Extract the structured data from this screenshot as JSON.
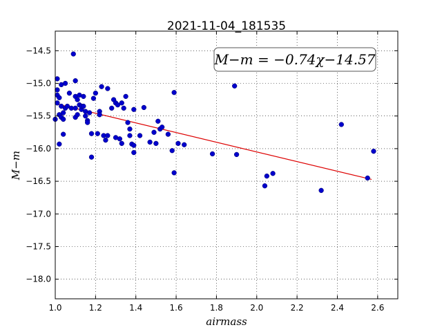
{
  "chart_data": {
    "type": "scatter",
    "title": "2021-11-04_181535",
    "xlabel": "airmass",
    "ylabel": "M−m",
    "xlim": [
      1.0,
      2.7
    ],
    "ylim": [
      -18.3,
      -14.2
    ],
    "y_inverted": true,
    "grid": true,
    "grid_style": "dotted",
    "x_ticks": [
      "1.0",
      "1.2",
      "1.4",
      "1.6",
      "1.8",
      "2.0",
      "2.2",
      "2.4",
      "2.6"
    ],
    "y_ticks": [
      "−14.5",
      "−15.0",
      "−15.5",
      "−16.0",
      "−16.5",
      "−17.0",
      "−17.5",
      "−18.0"
    ],
    "annotation": "M−m = −0.74χ−14.57",
    "point_color": "#0000cc",
    "fit_color": "#dd0000",
    "fit": {
      "slope": -0.74,
      "intercept": -14.57,
      "x_range": [
        1.0,
        2.57
      ]
    },
    "points": [
      [
        1.0,
        -15.55
      ],
      [
        1.01,
        -15.1
      ],
      [
        1.01,
        -15.18
      ],
      [
        1.01,
        -14.93
      ],
      [
        1.01,
        -15.3
      ],
      [
        1.02,
        -15.22
      ],
      [
        1.02,
        -15.93
      ],
      [
        1.02,
        -15.48
      ],
      [
        1.03,
        -15.02
      ],
      [
        1.03,
        -15.35
      ],
      [
        1.03,
        -15.52
      ],
      [
        1.04,
        -15.55
      ],
      [
        1.04,
        -15.45
      ],
      [
        1.04,
        -15.78
      ],
      [
        1.05,
        -15.0
      ],
      [
        1.05,
        -15.38
      ],
      [
        1.06,
        -15.35
      ],
      [
        1.07,
        -15.15
      ],
      [
        1.08,
        -15.38
      ],
      [
        1.09,
        -14.55
      ],
      [
        1.1,
        -15.52
      ],
      [
        1.1,
        -15.2
      ],
      [
        1.1,
        -14.96
      ],
      [
        1.1,
        -15.38
      ],
      [
        1.11,
        -15.48
      ],
      [
        1.11,
        -15.25
      ],
      [
        1.12,
        -15.18
      ],
      [
        1.12,
        -15.33
      ],
      [
        1.13,
        -15.4
      ],
      [
        1.13,
        -15.35
      ],
      [
        1.14,
        -15.2
      ],
      [
        1.14,
        -15.35
      ],
      [
        1.15,
        -15.43
      ],
      [
        1.15,
        -15.5
      ],
      [
        1.16,
        -15.57
      ],
      [
        1.16,
        -15.6
      ],
      [
        1.17,
        -15.45
      ],
      [
        1.18,
        -15.77
      ],
      [
        1.18,
        -16.13
      ],
      [
        1.19,
        -15.23
      ],
      [
        1.2,
        -15.15
      ],
      [
        1.21,
        -15.77
      ],
      [
        1.22,
        -15.43
      ],
      [
        1.22,
        -15.48
      ],
      [
        1.23,
        -15.05
      ],
      [
        1.24,
        -15.8
      ],
      [
        1.25,
        -15.87
      ],
      [
        1.26,
        -15.08
      ],
      [
        1.26,
        -15.8
      ],
      [
        1.28,
        -15.38
      ],
      [
        1.29,
        -15.25
      ],
      [
        1.3,
        -15.3
      ],
      [
        1.3,
        -15.83
      ],
      [
        1.31,
        -15.33
      ],
      [
        1.32,
        -15.85
      ],
      [
        1.33,
        -15.3
      ],
      [
        1.33,
        -15.92
      ],
      [
        1.34,
        -15.38
      ],
      [
        1.35,
        -15.2
      ],
      [
        1.36,
        -15.6
      ],
      [
        1.37,
        -15.8
      ],
      [
        1.37,
        -15.7
      ],
      [
        1.38,
        -15.93
      ],
      [
        1.39,
        -15.95
      ],
      [
        1.39,
        -16.06
      ],
      [
        1.39,
        -15.4
      ],
      [
        1.42,
        -15.8
      ],
      [
        1.44,
        -15.37
      ],
      [
        1.47,
        -15.9
      ],
      [
        1.49,
        -15.75
      ],
      [
        1.5,
        -15.92
      ],
      [
        1.51,
        -15.58
      ],
      [
        1.52,
        -15.7
      ],
      [
        1.53,
        -15.67
      ],
      [
        1.56,
        -15.78
      ],
      [
        1.58,
        -16.03
      ],
      [
        1.59,
        -16.37
      ],
      [
        1.59,
        -15.14
      ],
      [
        1.61,
        -15.92
      ],
      [
        1.64,
        -15.94
      ],
      [
        1.78,
        -16.08
      ],
      [
        1.89,
        -15.04
      ],
      [
        1.9,
        -16.09
      ],
      [
        2.04,
        -16.57
      ],
      [
        2.05,
        -16.42
      ],
      [
        2.08,
        -16.38
      ],
      [
        2.32,
        -16.64
      ],
      [
        2.42,
        -15.63
      ],
      [
        2.55,
        -16.45
      ],
      [
        2.58,
        -16.04
      ]
    ]
  }
}
